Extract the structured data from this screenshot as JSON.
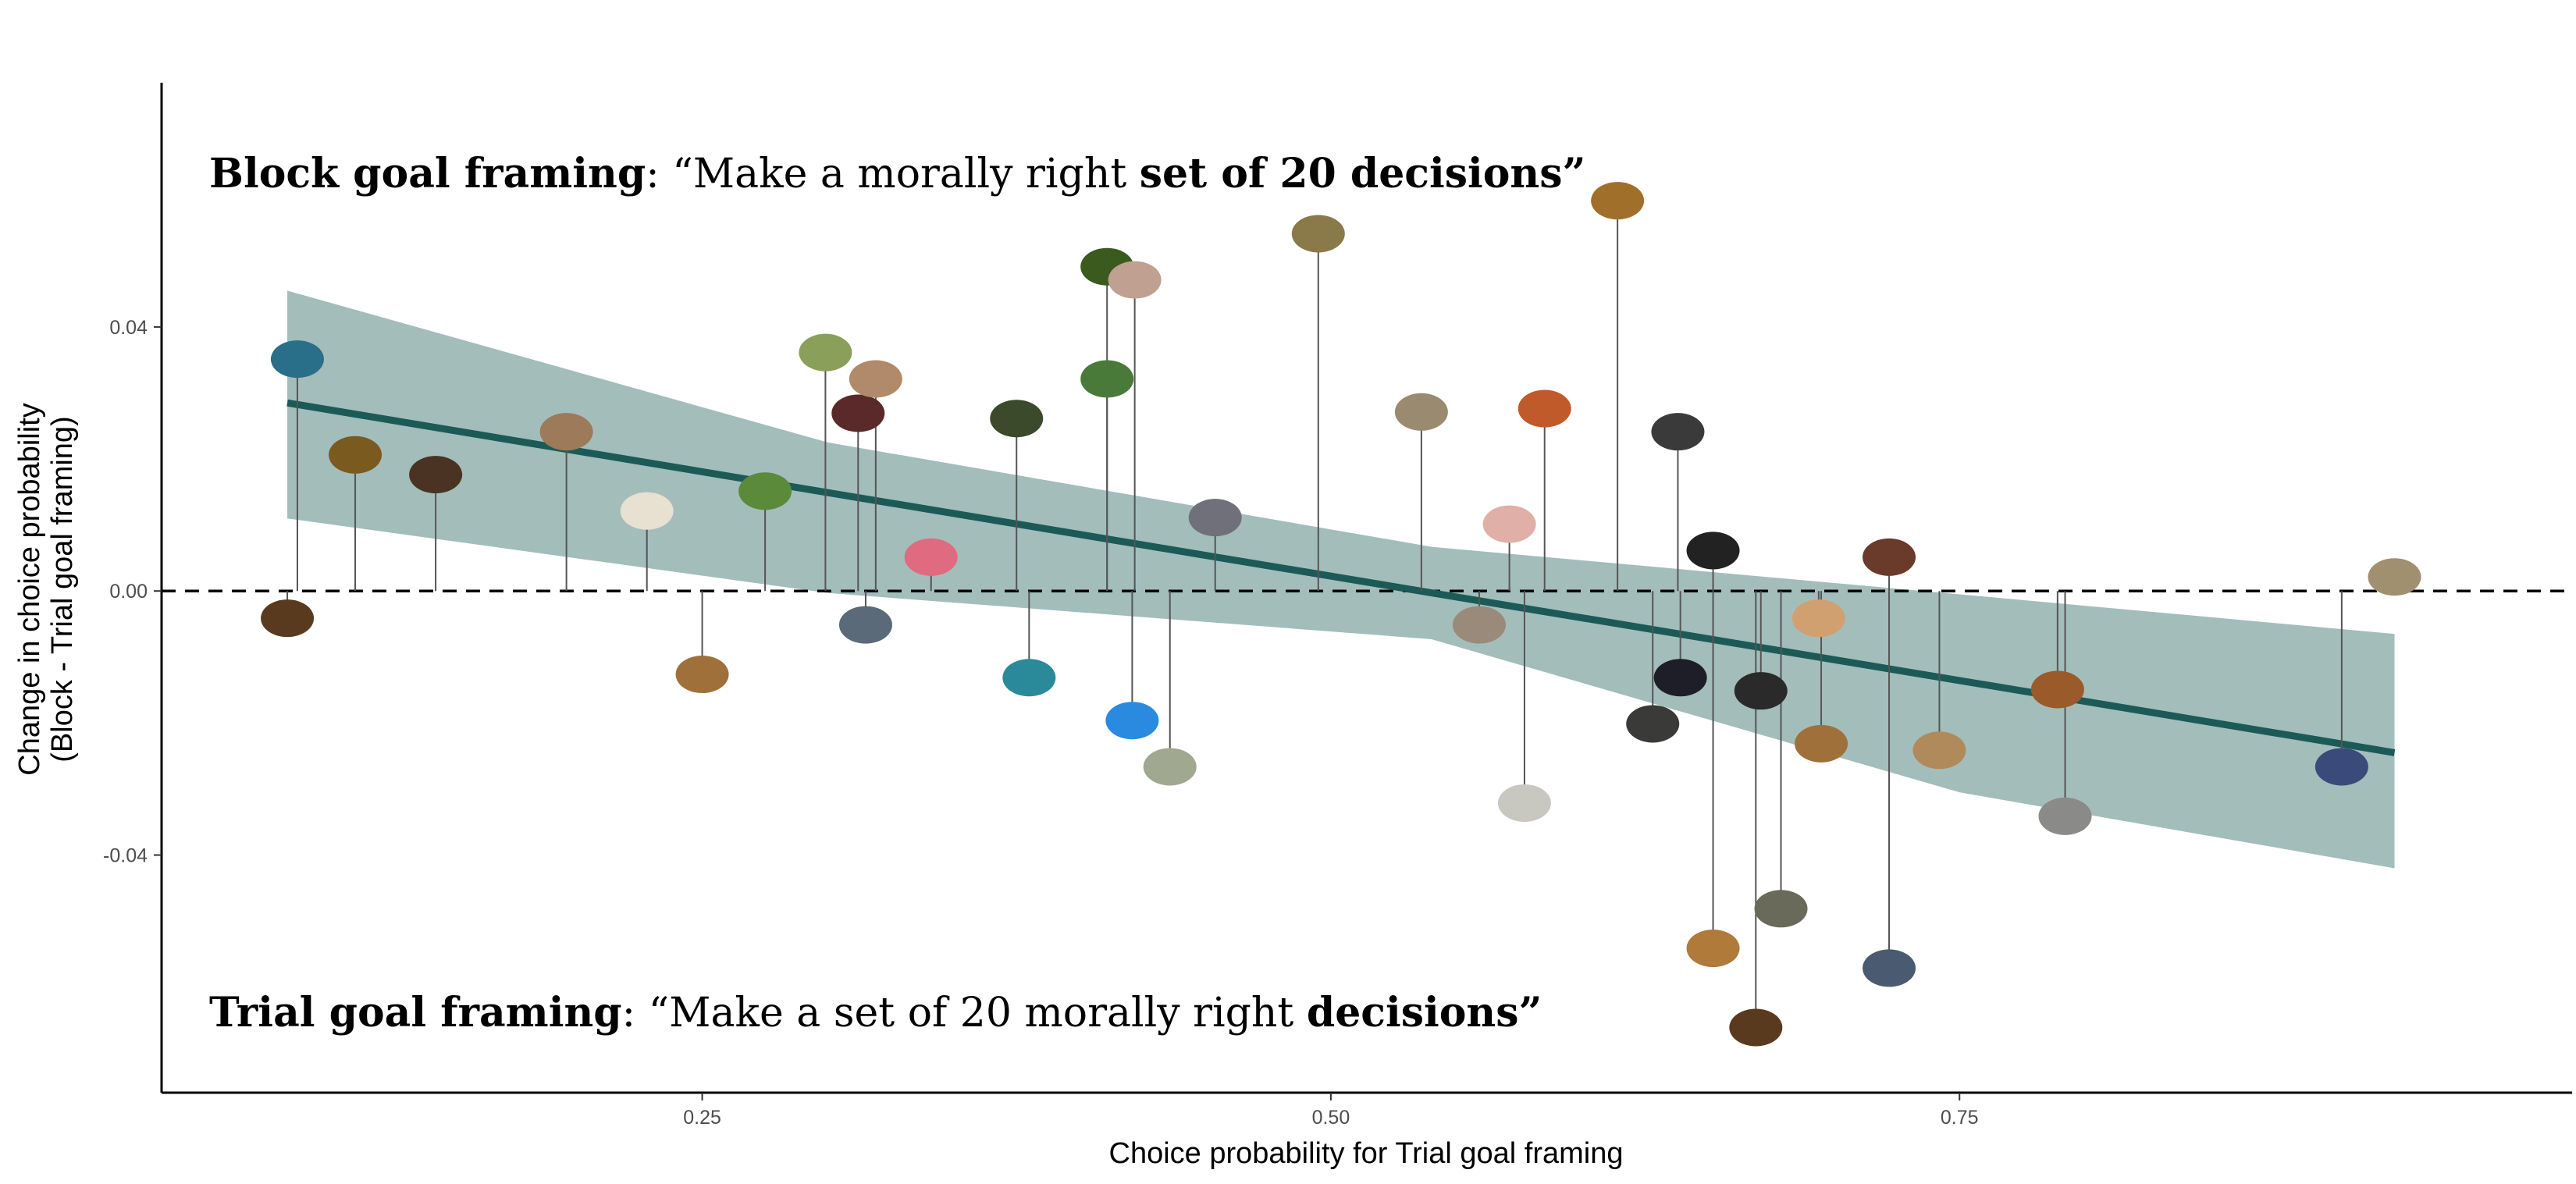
{
  "chart_data": {
    "type": "scatter",
    "title": "",
    "xlabel": "Choice probability for Trial goal framing",
    "ylabel": [
      "Change in choice probability",
      "(Block - Trial goal framing)"
    ],
    "xlim": [
      0.035,
      0.993
    ],
    "ylim": [
      -0.076,
      0.077
    ],
    "x_ticks": [
      {
        "value": 0.25,
        "label": "0.25"
      },
      {
        "value": 0.5,
        "label": "0.50"
      },
      {
        "value": 0.75,
        "label": "0.75"
      }
    ],
    "y_ticks": [
      {
        "value": 0.04,
        "label": "0.04"
      },
      {
        "value": 0.0,
        "label": "0.00"
      },
      {
        "value": -0.04,
        "label": "-0.04"
      }
    ],
    "grid": false,
    "reference_line": {
      "y": 0,
      "style": "dashed"
    },
    "regression": {
      "x": [
        0.085,
        0.923
      ],
      "y": [
        0.0285,
        -0.0245
      ],
      "ci_x": [
        0.085,
        0.3,
        0.54,
        0.75,
        0.923
      ],
      "ci_lower": [
        0.011,
        -0.0003,
        -0.0073,
        -0.0305,
        -0.042
      ],
      "ci_upper": [
        0.0455,
        0.0225,
        0.0067,
        -0.0005,
        -0.0065
      ],
      "color": "#1b5a57",
      "band_color": "#a3bdbb"
    },
    "annotations": [
      {
        "position": "top-left",
        "segments": [
          {
            "text": "Block goal framing",
            "bold": true
          },
          {
            "text": ": “Make a morally right ",
            "bold": false
          },
          {
            "text": "set of 20 decisions",
            "bold": true
          },
          {
            "text": "”",
            "bold": true
          }
        ]
      },
      {
        "position": "bottom-left",
        "segments": [
          {
            "text": "Trial goal framing",
            "bold": true
          },
          {
            "text": ": “Make a set of 20 morally right ",
            "bold": false
          },
          {
            "text": "decisions",
            "bold": true
          },
          {
            "text": "”",
            "bold": true
          }
        ]
      }
    ],
    "points": [
      {
        "icon": "fly-icon",
        "x": 0.089,
        "y": 0.033,
        "color": "#2a6f8a"
      },
      {
        "icon": "cockroach-icon",
        "x": 0.085,
        "y": -0.002,
        "color": "#5a3a1e"
      },
      {
        "icon": "worm-icon",
        "x": 0.112,
        "y": 0.0185,
        "color": "#7a5a1e"
      },
      {
        "icon": "spider-icon",
        "x": 0.144,
        "y": 0.0155,
        "color": "#4a3322"
      },
      {
        "icon": "scallop-icon",
        "x": 0.196,
        "y": 0.022,
        "color": "#9c7a5a"
      },
      {
        "icon": "mushroom-icon",
        "x": 0.228,
        "y": 0.01,
        "color": "#e8e0d0"
      },
      {
        "icon": "snail-icon",
        "x": 0.25,
        "y": -0.0105,
        "color": "#a0703a"
      },
      {
        "icon": "moss-icon",
        "x": 0.275,
        "y": 0.013,
        "color": "#5a8a3a"
      },
      {
        "icon": "frog-icon",
        "x": 0.299,
        "y": 0.034,
        "color": "#8aa05a"
      },
      {
        "icon": "shrub-icon",
        "x": 0.312,
        "y": 0.0248,
        "color": "#5a2a2a"
      },
      {
        "icon": "gerbil-icon",
        "x": 0.319,
        "y": 0.03,
        "color": "#b08a6a"
      },
      {
        "icon": "crocodile-icon",
        "x": 0.315,
        "y": -0.003,
        "color": "#5a6a78"
      },
      {
        "icon": "flowers-icon",
        "x": 0.341,
        "y": 0.003,
        "color": "#e06a80"
      },
      {
        "icon": "conifer-icon",
        "x": 0.375,
        "y": 0.024,
        "color": "#3a4a2a"
      },
      {
        "icon": "chameleon-icon",
        "x": 0.38,
        "y": -0.011,
        "color": "#2a8a9a"
      },
      {
        "icon": "palm-tree-icon",
        "x": 0.411,
        "y": 0.03,
        "color": "#4a7a3a"
      },
      {
        "icon": "cypress-icon",
        "x": 0.411,
        "y": 0.047,
        "color": "#3a5a1e"
      },
      {
        "icon": "fish-icon",
        "x": 0.422,
        "y": 0.045,
        "color": "#c0a090"
      },
      {
        "icon": "butterfly-icon",
        "x": 0.421,
        "y": -0.0175,
        "color": "#2a8ae0"
      },
      {
        "icon": "octopus-icon",
        "x": 0.436,
        "y": -0.0245,
        "color": "#a0a890"
      },
      {
        "icon": "pigeon-icon",
        "x": 0.454,
        "y": 0.009,
        "color": "#70707a"
      },
      {
        "icon": "owl-icon",
        "x": 0.495,
        "y": 0.052,
        "color": "#8a7a4a"
      },
      {
        "icon": "tortoise-icon",
        "x": 0.536,
        "y": 0.025,
        "color": "#9a8a70"
      },
      {
        "icon": "rabbit-icon",
        "x": 0.559,
        "y": -0.003,
        "color": "#9a8a7a"
      },
      {
        "icon": "pig-icon",
        "x": 0.571,
        "y": 0.008,
        "color": "#e0b0a8"
      },
      {
        "icon": "seal-icon",
        "x": 0.577,
        "y": -0.03,
        "color": "#c8c8c0"
      },
      {
        "icon": "fox-icon",
        "x": 0.585,
        "y": 0.0255,
        "color": "#c05a2a"
      },
      {
        "icon": "chicken-icon",
        "x": 0.614,
        "y": 0.057,
        "color": "#a0702a"
      },
      {
        "icon": "sheep-icon",
        "x": 0.638,
        "y": 0.022,
        "color": "#3a3a3a"
      },
      {
        "icon": "whale-icon",
        "x": 0.628,
        "y": -0.018,
        "color": "#3a3a38"
      },
      {
        "icon": "dog-icon",
        "x": 0.639,
        "y": -0.011,
        "color": "#1e1e28"
      },
      {
        "icon": "penguin-icon",
        "x": 0.652,
        "y": 0.004,
        "color": "#222222"
      },
      {
        "icon": "lion-icon",
        "x": 0.652,
        "y": -0.052,
        "color": "#b07a3a"
      },
      {
        "icon": "chimpanzee-icon",
        "x": 0.671,
        "y": -0.013,
        "color": "#2a2a2a"
      },
      {
        "icon": "bear-icon",
        "x": 0.669,
        "y": -0.064,
        "color": "#5a3a1e"
      },
      {
        "icon": "gorilla-icon",
        "x": 0.679,
        "y": -0.046,
        "color": "#6a6a5a"
      },
      {
        "icon": "cat-icon",
        "x": 0.694,
        "y": -0.002,
        "color": "#d0a070"
      },
      {
        "icon": "deer-icon",
        "x": 0.695,
        "y": -0.021,
        "color": "#a0703a"
      },
      {
        "icon": "cow-icon",
        "x": 0.722,
        "y": 0.003,
        "color": "#6a3a2a"
      },
      {
        "icon": "dolphin-icon",
        "x": 0.722,
        "y": -0.055,
        "color": "#4a5a70"
      },
      {
        "icon": "giraffe-icon",
        "x": 0.742,
        "y": -0.022,
        "color": "#b08a5a"
      },
      {
        "icon": "horse-icon",
        "x": 0.789,
        "y": -0.0128,
        "color": "#9a5a2a"
      },
      {
        "icon": "elephant-icon",
        "x": 0.792,
        "y": -0.032,
        "color": "#8a8a88"
      },
      {
        "icon": "woman-icon",
        "x": 0.923,
        "y": 0.0,
        "color": "#a09070"
      },
      {
        "icon": "man-icon",
        "x": 0.902,
        "y": -0.0245,
        "color": "#3a4a7a"
      }
    ]
  }
}
